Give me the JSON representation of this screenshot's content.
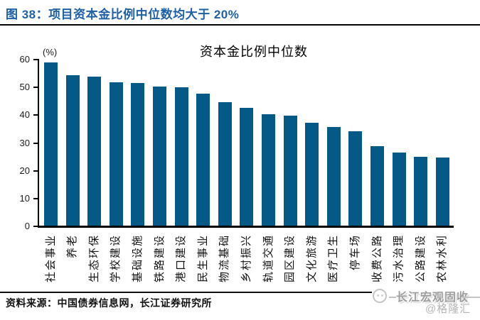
{
  "figure": {
    "title": "图 38：项目资本金比例中位数均大于 20%",
    "accent_color": "#1E5FA6"
  },
  "chart_data": {
    "type": "bar",
    "title": "资本金比例中位数",
    "y_unit": "(%)",
    "categories": [
      "社会事业",
      "养老",
      "生态环保",
      "学校建设",
      "基础设施",
      "铁路建设",
      "港口建设",
      "民生事业",
      "物流基础",
      "乡村振兴",
      "轨道交通",
      "园区建设",
      "文化旅游",
      "医疗卫生",
      "停车场",
      "收费公路",
      "污水治理",
      "公路建设",
      "农林水利"
    ],
    "values": [
      58.8,
      54.1,
      53.5,
      51.5,
      51.4,
      50.0,
      49.8,
      47.6,
      44.3,
      42.3,
      40.0,
      39.6,
      37.0,
      35.5,
      34.0,
      28.6,
      26.3,
      24.7,
      24.5
    ],
    "ylim": [
      0,
      60
    ],
    "yticks": [
      0,
      10,
      20,
      30,
      40,
      50,
      60
    ],
    "bar_color": "#055987",
    "axis_color": "#000000",
    "grid": false,
    "legend": "none",
    "x_label_rotation": -90
  },
  "source": {
    "text": "资料来源：中国债券信息网，长江证券研究所"
  },
  "watermark": {
    "brand": "长江宏观固收",
    "handle": "@格隆汇",
    "logo": "gelonghui-logo"
  }
}
